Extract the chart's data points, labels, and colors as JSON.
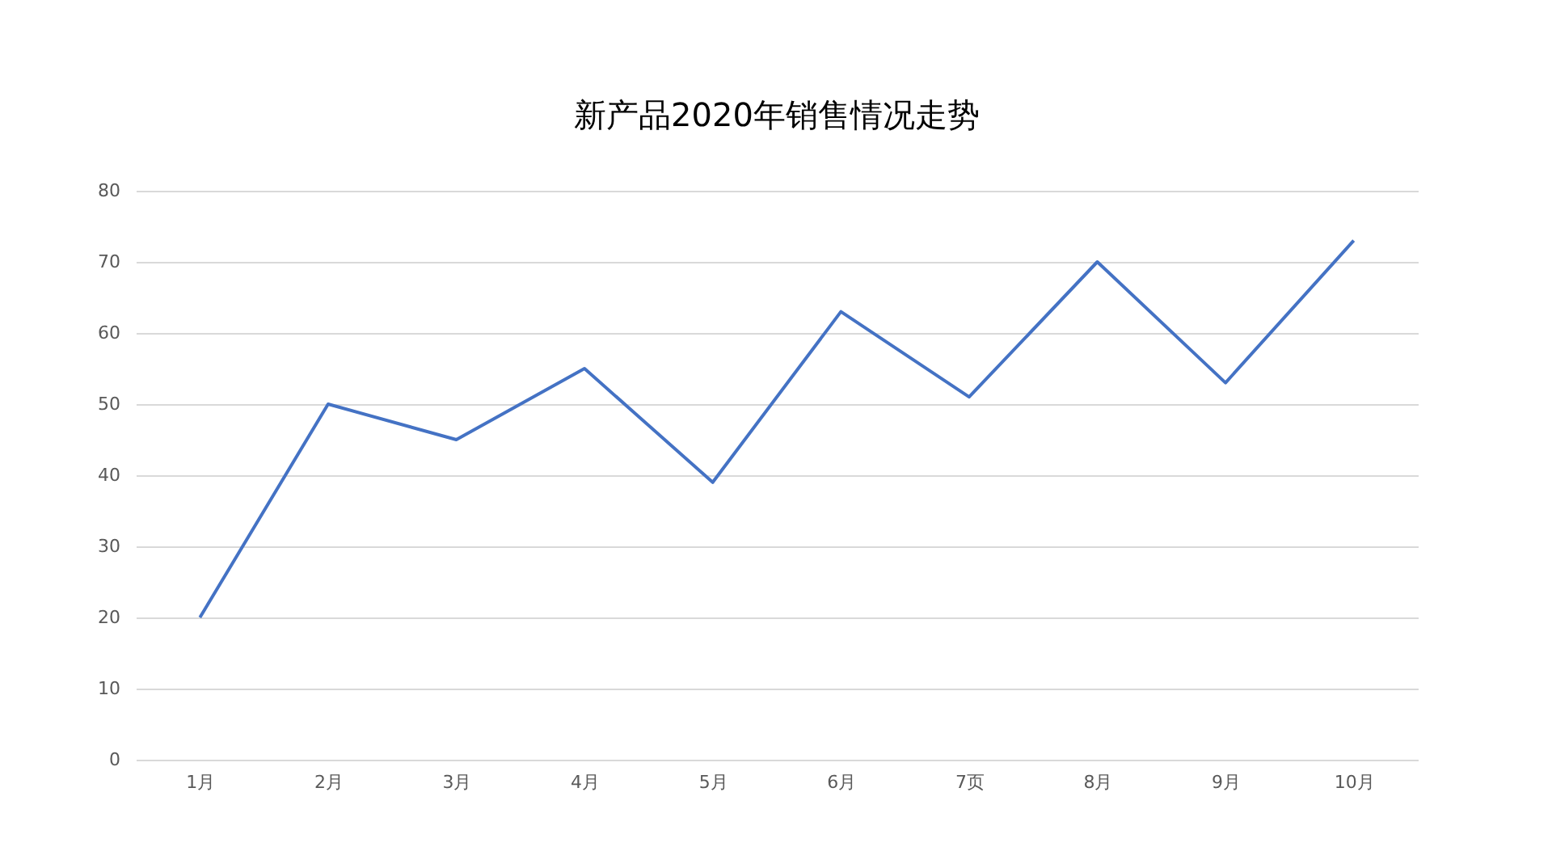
{
  "chart_data": {
    "type": "line",
    "title": "新产品2020年销售情况走势",
    "categories": [
      "1月",
      "2月",
      "3月",
      "4月",
      "5月",
      "6月",
      "7页",
      "8月",
      "9月",
      "10月"
    ],
    "series": [
      {
        "color": "#4472c4",
        "values": [
          20,
          50,
          45,
          55,
          39,
          63,
          51,
          70,
          53,
          73
        ]
      }
    ],
    "ylim": [
      0,
      80
    ],
    "yticks": [
      0,
      10,
      20,
      30,
      40,
      50,
      60,
      70,
      80
    ],
    "grid": "y",
    "marker": "none",
    "line_style": "solid"
  }
}
